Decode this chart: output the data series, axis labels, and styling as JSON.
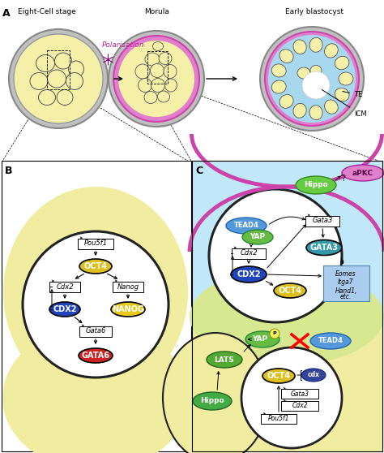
{
  "panel_A_label": "A",
  "panel_B_label": "B",
  "panel_C_label": "C",
  "stage_labels": [
    "Eight-Cell stage",
    "Morula",
    "Early blastocyst"
  ],
  "polarisation_text": "Polarisation",
  "TE_label": "TE",
  "ICM_label": "ICM",
  "colors": {
    "yellow_cell": "#f5f0a8",
    "yellow_outer": "#f0eca0",
    "gray_shell": "#b8b8b8",
    "gray_shell_dark": "#909090",
    "magenta": "#cc44aa",
    "magenta_light": "#e080cc",
    "blue_fluid": "#a8d8f0",
    "blue_fluid2": "#b8e0f8",
    "white": "#ffffff",
    "nucleus_border": "#222222",
    "cell_border": "#555555",
    "black": "#000000",
    "yellow_protein": "#e8c818",
    "yellow_protein2": "#ddc020",
    "blue_protein": "#2244bb",
    "blue_protein2": "#3355cc",
    "red_protein": "#cc2222",
    "green_hippo": "#66cc44",
    "green_hippo2": "#44aa44",
    "green_lats": "#55aa33",
    "teal_gata3": "#3399aa",
    "blue_tead4": "#5599dd",
    "green_yap": "#66bb44",
    "magenta_apkc": "#dd77cc",
    "light_blue_eomes": "#aaccee"
  }
}
